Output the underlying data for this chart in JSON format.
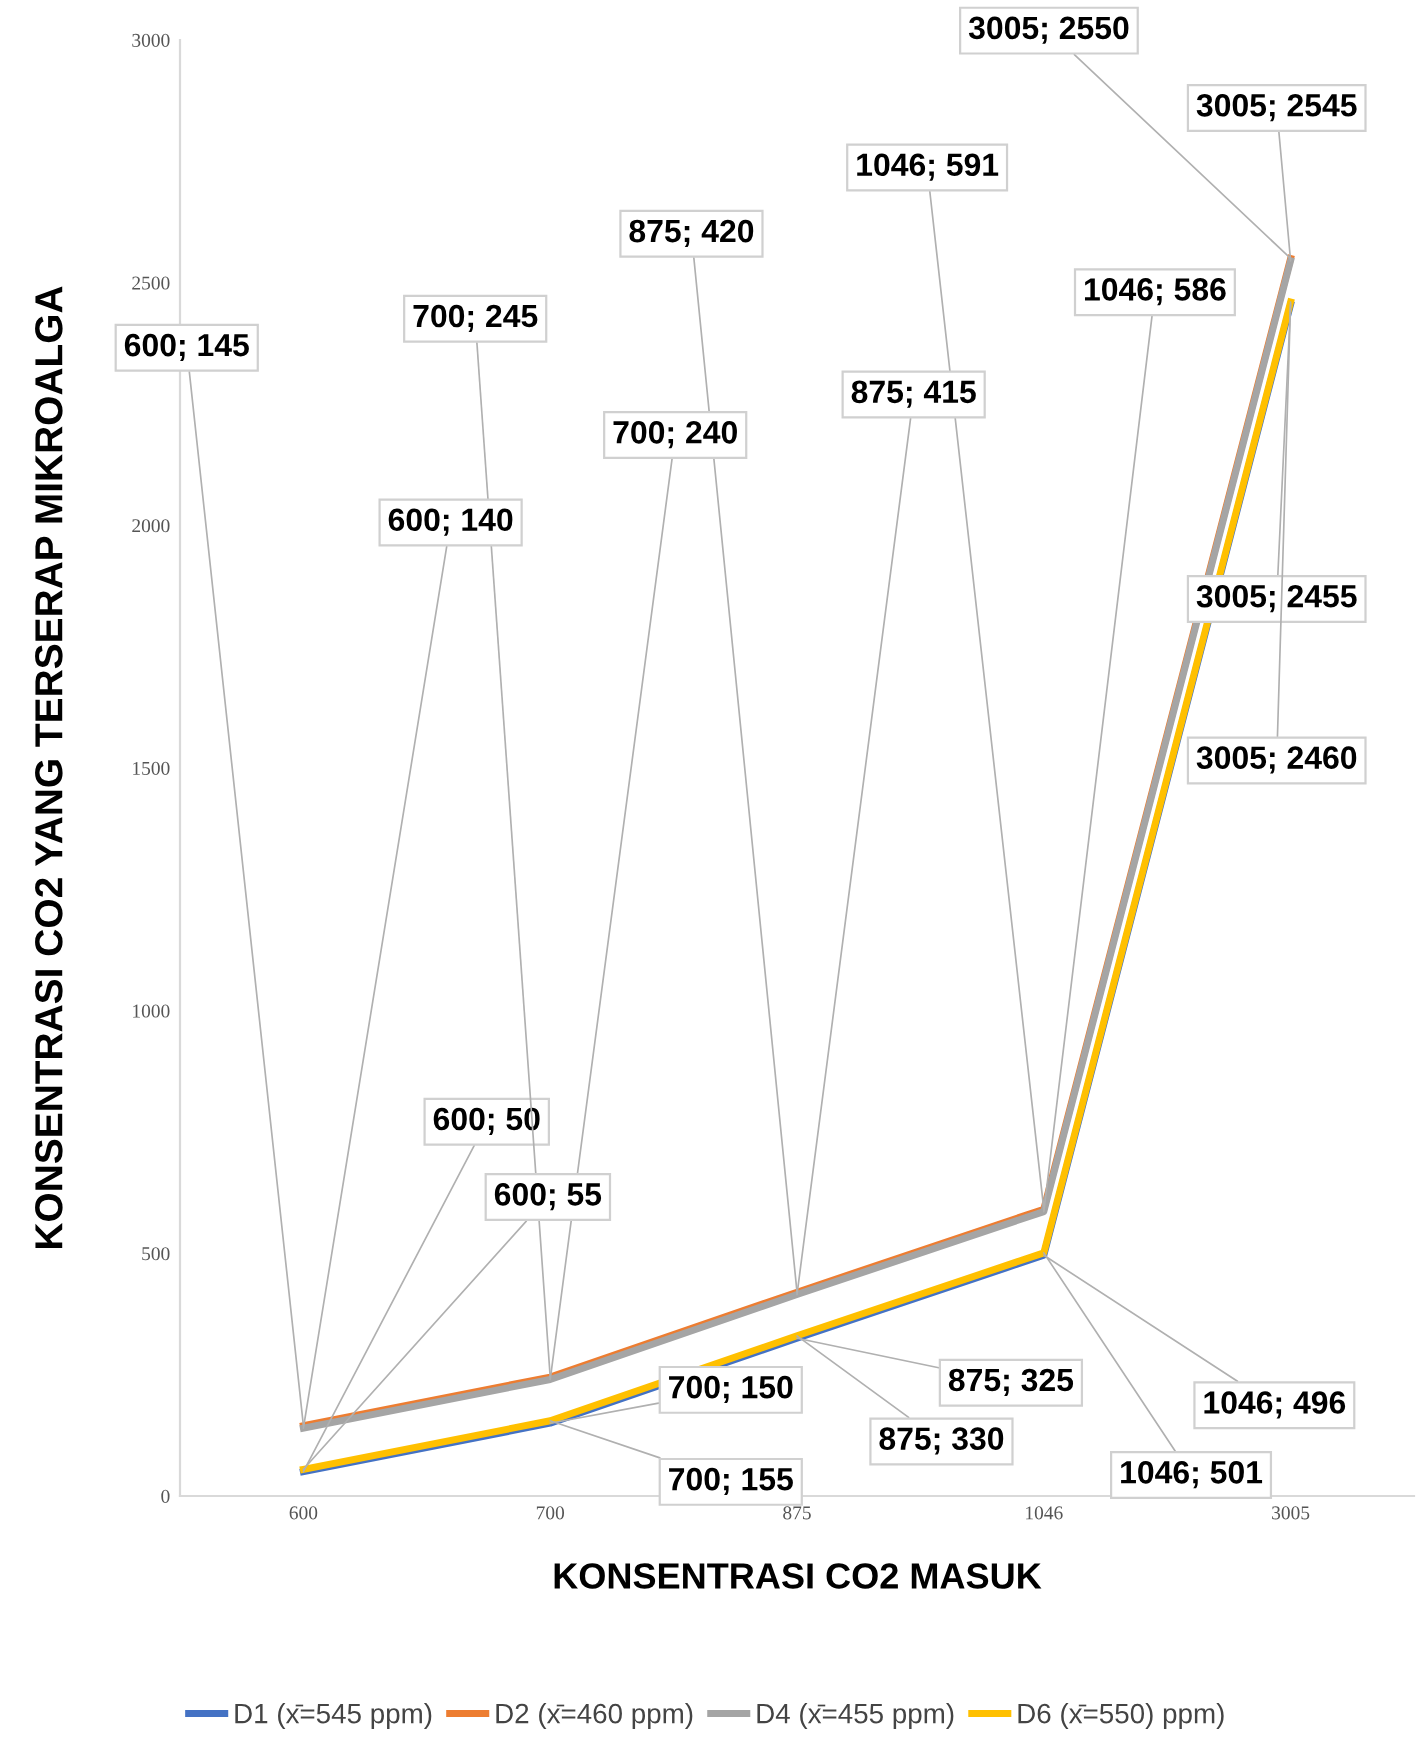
{
  "chart_data": {
    "type": "line",
    "xlabel": "KONSENTRASI CO2 MASUK",
    "ylabel": "KONSENTRASI CO2 YANG TERSERAP MIKROALGA",
    "categories": [
      "600",
      "700",
      "875",
      "1046",
      "3005"
    ],
    "ylim": [
      0,
      3000
    ],
    "yticks": [
      0,
      500,
      1000,
      1500,
      2000,
      2500,
      3000
    ],
    "grid": false,
    "legend": "bottom",
    "marker": "none",
    "line_style": "solid",
    "series": [
      {
        "name": "D1 (x̄=545 ppm)",
        "color": "#4472c4",
        "values": [
          50,
          150,
          325,
          496,
          2455
        ],
        "value_labels": [
          "600; 50",
          "700; 150",
          "875; 325",
          "1046; 496",
          "3005; 2455"
        ]
      },
      {
        "name": "D2 (x̄=460 ppm)",
        "color": "#ed7d31",
        "values": [
          145,
          245,
          420,
          591,
          2550
        ],
        "value_labels": [
          "600; 145",
          "700; 245",
          "875; 420",
          "1046; 591",
          "3005; 2550"
        ]
      },
      {
        "name": "D4 (x̄=455 ppm)",
        "color": "#a5a5a5",
        "values": [
          140,
          240,
          415,
          586,
          2545
        ],
        "value_labels": [
          "600; 140",
          "700; 240",
          "875; 415",
          "1046; 586",
          "3005; 2545"
        ]
      },
      {
        "name": "D6 (x̄=550) ppm)",
        "color": "#ffc000",
        "values": [
          55,
          155,
          330,
          501,
          2460
        ],
        "value_labels": [
          "600; 55",
          "700; 155",
          "875; 330",
          "1046; 501",
          "3005; 2460"
        ]
      }
    ]
  }
}
